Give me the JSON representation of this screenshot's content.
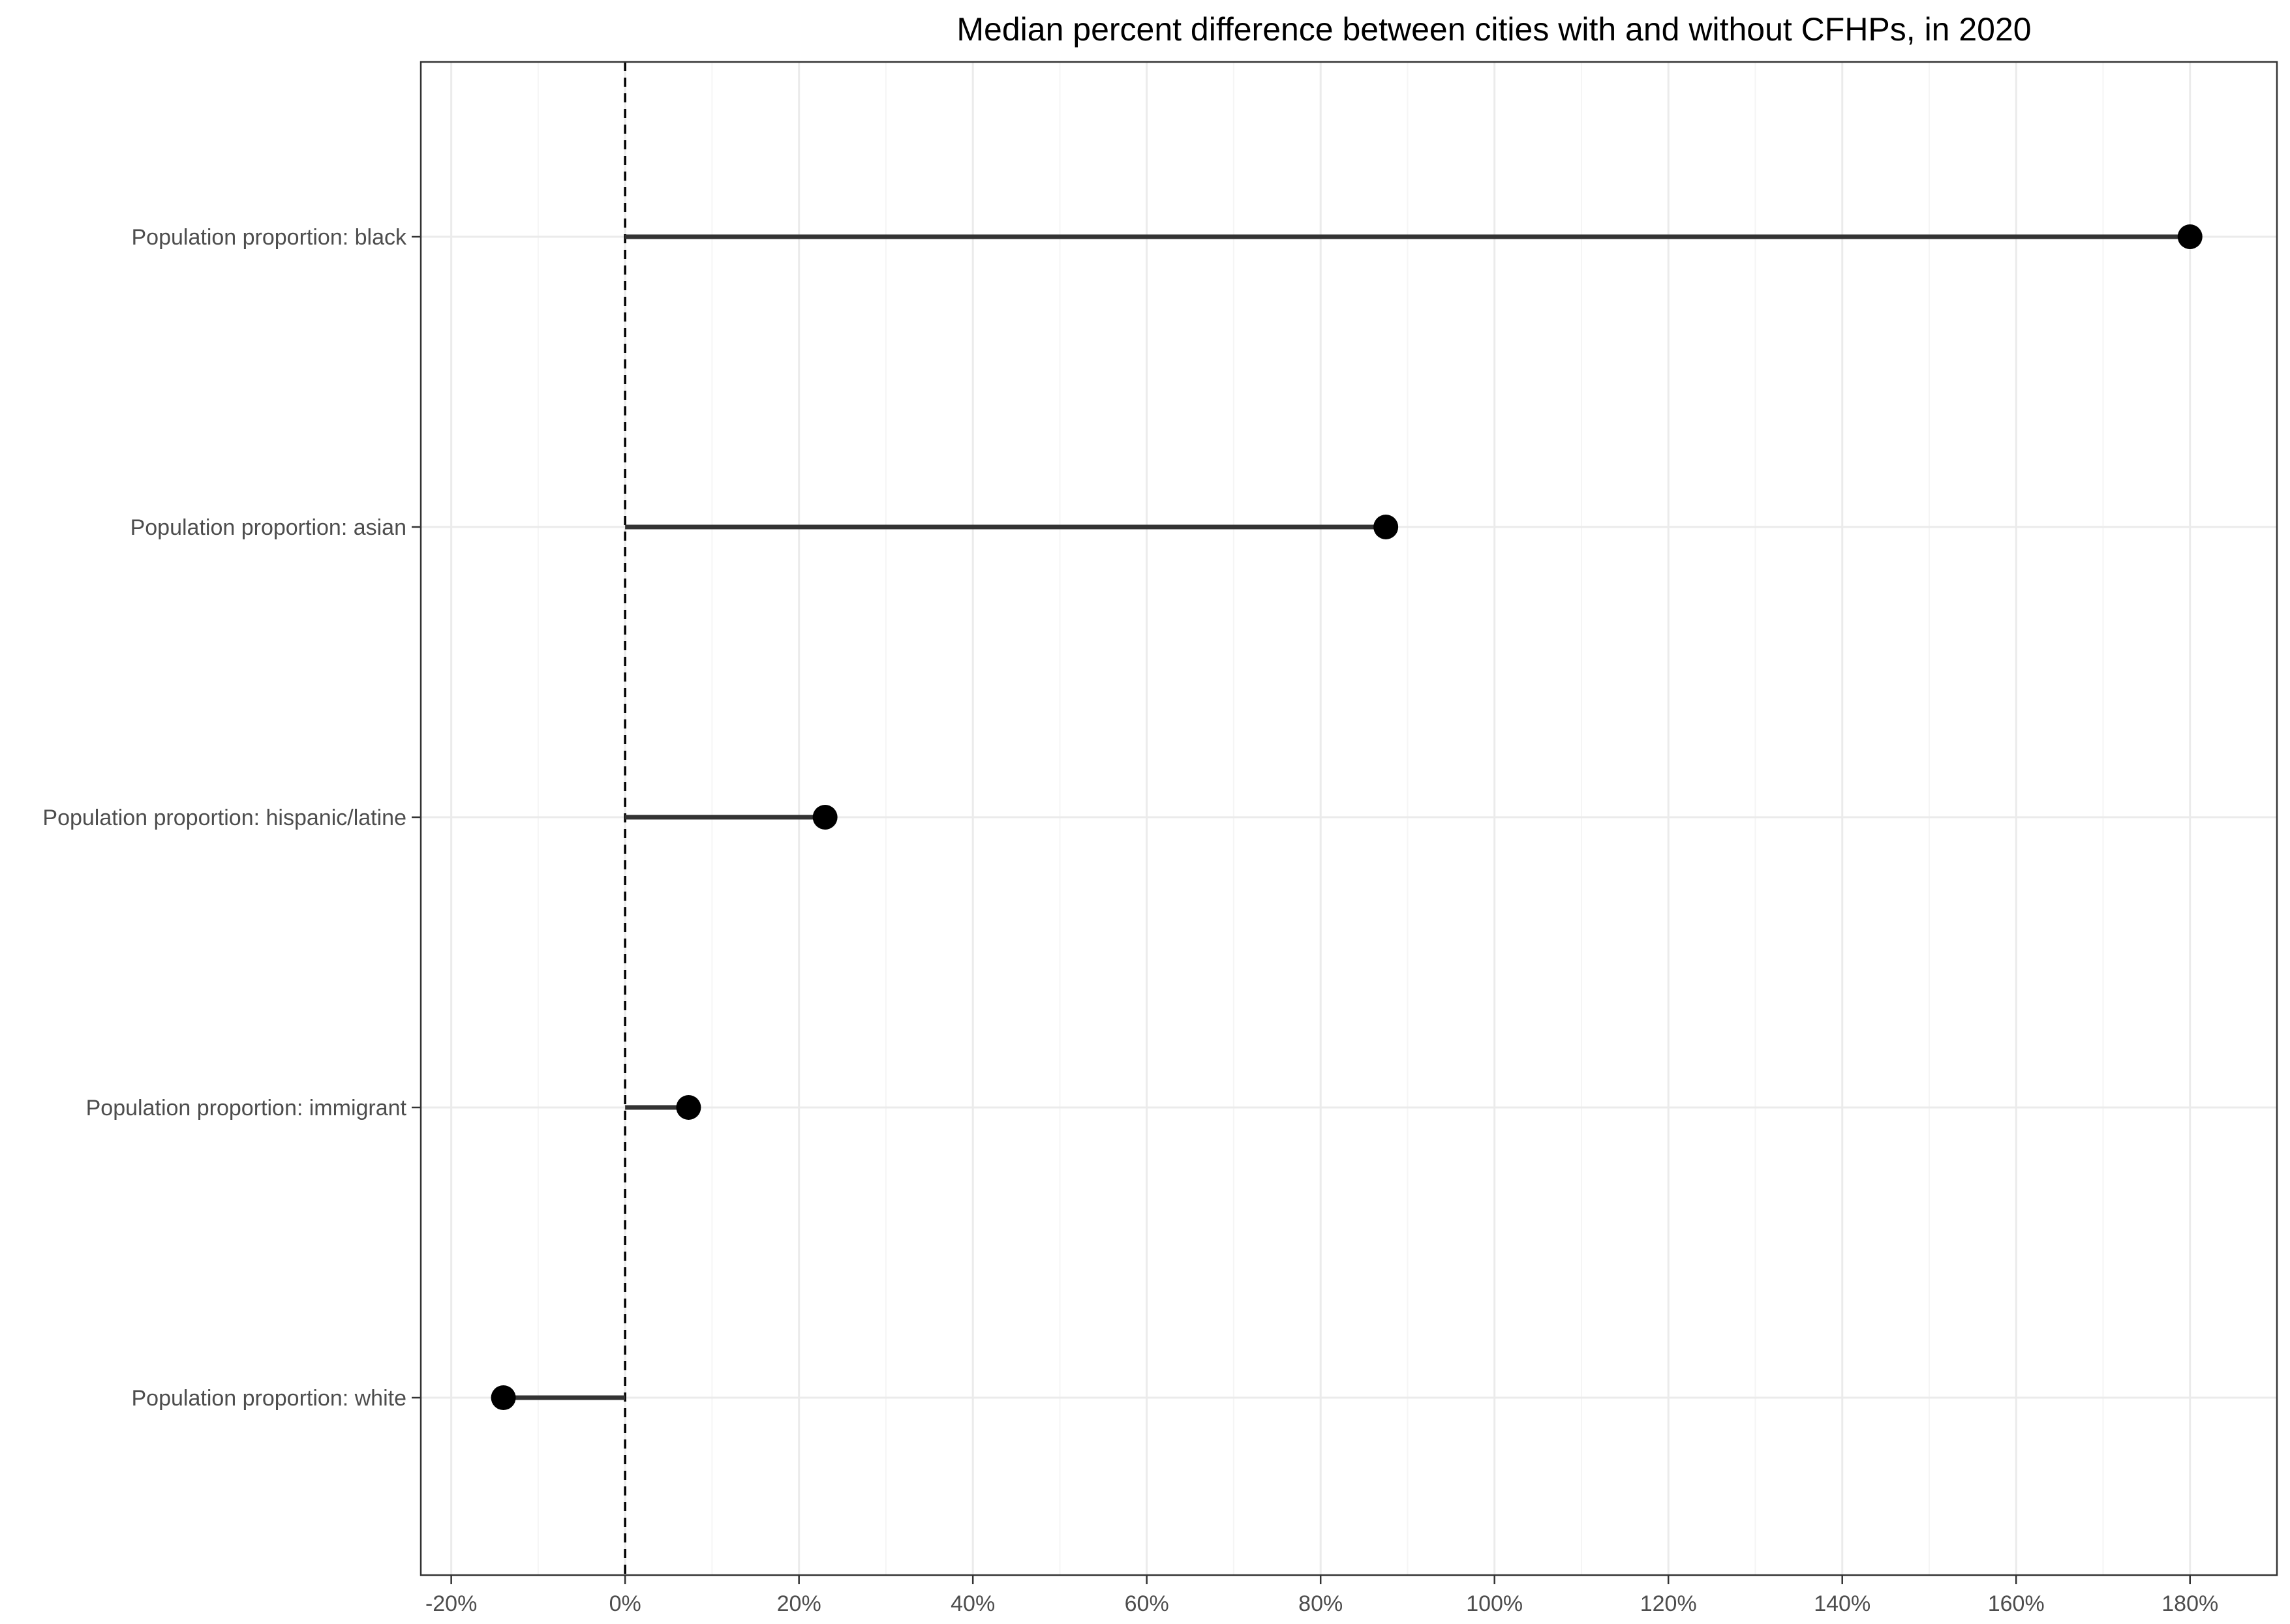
{
  "chart_data": {
    "type": "lollipop",
    "title": "Median percent difference between cities with and without CFHPs, in 2020",
    "xlabel": "",
    "ylabel": "",
    "categories": [
      "Population proportion: black",
      "Population proportion: asian",
      "Population proportion: hispanic/latine",
      "Population proportion: immigrant",
      "Population proportion: white"
    ],
    "values": [
      180,
      87.5,
      23,
      7.3,
      -14
    ],
    "xlim": [
      -23.5,
      190
    ],
    "x_ticks": [
      -20,
      0,
      20,
      40,
      60,
      80,
      100,
      120,
      140,
      160,
      180
    ],
    "x_tick_labels": [
      "-20%",
      "0%",
      "20%",
      "40%",
      "60%",
      "80%",
      "100%",
      "120%",
      "140%",
      "160%",
      "180%"
    ],
    "reference_line": 0,
    "grid": true,
    "colors": {
      "point": "#000000",
      "segment": "#333333",
      "grid_major": "#ebebeb",
      "grid_minor": "#f5f5f5",
      "panel_border": "#333333",
      "tick_label": "#4d4d4d"
    }
  }
}
